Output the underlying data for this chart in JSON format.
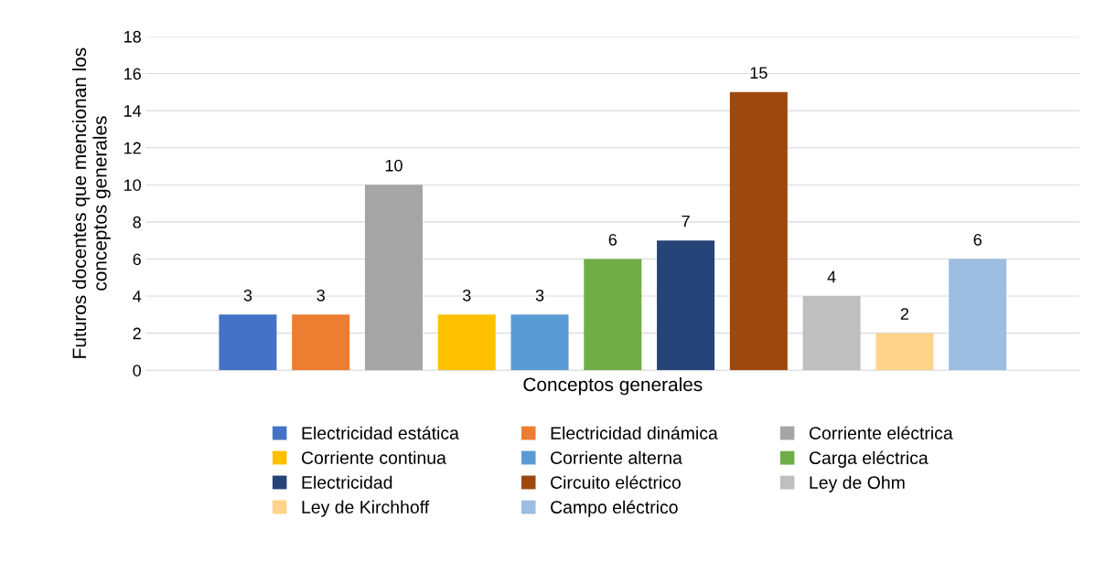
{
  "chart_data": {
    "type": "bar",
    "xlabel": "Conceptos generales",
    "ylabel": "Futuros docentes que mencionan los\nconceptos generales",
    "categories": [
      null
    ],
    "series": [
      {
        "name": "Electricidad estática",
        "color": "#4472c4",
        "values": [
          3
        ]
      },
      {
        "name": "Electricidad dinámica",
        "color": "#ed7d31",
        "values": [
          3
        ]
      },
      {
        "name": "Corriente eléctrica",
        "color": "#a5a5a5",
        "values": [
          10
        ]
      },
      {
        "name": "Corriente continua",
        "color": "#ffc000",
        "values": [
          3
        ]
      },
      {
        "name": "Corriente alterna",
        "color": "#5b9bd5",
        "values": [
          3
        ]
      },
      {
        "name": "Carga eléctrica",
        "color": "#70ad47",
        "values": [
          6
        ]
      },
      {
        "name": "Electricidad",
        "color": "#264478",
        "values": [
          7
        ]
      },
      {
        "name": "Circuito eléctrico",
        "color": "#9e480e",
        "values": [
          15
        ]
      },
      {
        "name": "Ley de Ohm",
        "color": "#bfbfbf",
        "values": [
          4
        ]
      },
      {
        "name": "Ley de Kirchhoff",
        "color": "#ffd38a",
        "values": [
          2
        ]
      },
      {
        "name": "Campo eléctrico",
        "color": "#9dbde2",
        "values": [
          6
        ]
      }
    ],
    "ylim": [
      0,
      18
    ],
    "yticks": [
      0,
      2,
      4,
      6,
      8,
      10,
      12,
      14,
      16,
      18
    ],
    "grid": "y",
    "legend": "bottom",
    "data_labels": true
  }
}
